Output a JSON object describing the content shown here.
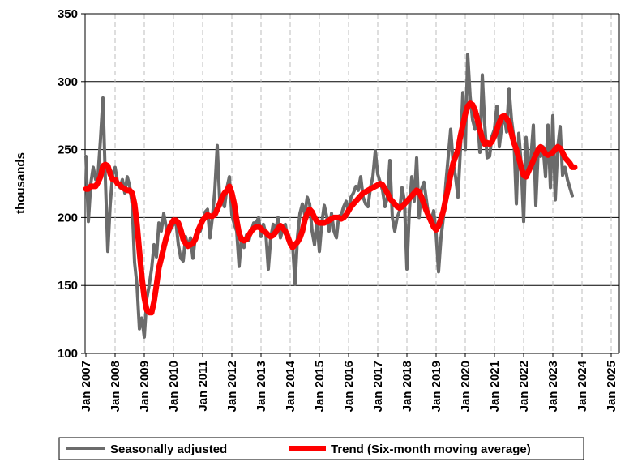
{
  "chart_data": {
    "type": "line",
    "ylabel": "thousands",
    "xlabel": "",
    "ylim": [
      100,
      350
    ],
    "yticks": [
      "100",
      "150",
      "200",
      "250",
      "300",
      "350"
    ],
    "x_start": "Jan 2007",
    "x_end": "Apr 2025",
    "x_tick_labels": [
      "Jan 2007",
      "Jan 2008",
      "Jan 2009",
      "Jan 2010",
      "Jan 2011",
      "Jan 2012",
      "Jan 2013",
      "Jan 2014",
      "Jan 2015",
      "Jan 2016",
      "Jan 2017",
      "Jan 2018",
      "Jan 2019",
      "Jan 2020",
      "Jan 2021",
      "Jan 2022",
      "Jan 2023",
      "Jan 2024",
      "Jan 2025"
    ],
    "horizontal_grid": true,
    "vertical_grid": "dashed",
    "legend_position": "bottom",
    "series": [
      {
        "name": "Seasonally adjusted",
        "color": "#6b6b6b",
        "values": [
          245,
          197,
          225,
          237,
          228,
          232,
          258,
          288,
          228,
          175,
          210,
          232,
          237,
          226,
          222,
          228,
          218,
          230,
          223,
          210,
          167,
          150,
          118,
          126,
          112,
          140,
          150,
          162,
          180,
          171,
          196,
          190,
          203,
          193,
          188,
          192,
          195,
          197,
          180,
          170,
          168,
          186,
          178,
          185,
          170,
          186,
          190,
          190,
          196,
          204,
          206,
          185,
          200,
          220,
          253,
          213,
          212,
          208,
          222,
          230,
          202,
          195,
          190,
          164,
          186,
          178,
          187,
          183,
          190,
          196,
          196,
          200,
          186,
          195,
          188,
          162,
          185,
          195,
          190,
          200,
          185,
          192,
          195,
          184,
          180,
          180,
          151,
          186,
          203,
          210,
          202,
          215,
          210,
          190,
          180,
          198,
          175,
          196,
          209,
          201,
          190,
          203,
          190,
          185,
          201,
          202,
          208,
          212,
          203,
          215,
          218,
          223,
          220,
          230,
          215,
          210,
          208,
          222,
          230,
          249,
          232,
          226,
          220,
          208,
          215,
          242,
          200,
          190,
          200,
          205,
          222,
          212,
          162,
          205,
          230,
          212,
          244,
          200,
          221,
          226,
          213,
          200,
          197,
          205,
          188,
          160,
          185,
          200,
          225,
          245,
          265,
          240,
          230,
          215,
          250,
          292,
          250,
          320,
          289,
          272,
          265,
          276,
          248,
          305,
          268,
          244,
          245,
          260,
          265,
          282,
          252,
          268,
          275,
          263,
          295,
          272,
          258,
          210,
          262,
          239,
          197,
          259,
          235,
          244,
          268,
          209,
          250,
          245,
          252,
          230,
          268,
          222,
          275,
          213,
          251,
          267,
          231,
          237,
          228,
          222,
          216
        ]
      },
      {
        "name": "Trend (Six-month moving average)",
        "color": "#ff0000",
        "values": [
          221,
          221,
          223,
          223,
          223,
          226,
          230,
          238,
          239,
          238,
          232,
          228,
          228,
          225,
          224,
          222,
          221,
          220,
          220,
          218,
          210,
          195,
          175,
          156,
          141,
          132,
          130,
          130,
          138,
          150,
          163,
          170,
          178,
          185,
          191,
          195,
          198,
          198,
          196,
          191,
          184,
          181,
          179,
          180,
          181,
          184,
          190,
          194,
          198,
          200,
          202,
          201,
          201,
          202,
          206,
          210,
          215,
          218,
          220,
          223,
          218,
          210,
          198,
          188,
          184,
          183,
          184,
          187,
          190,
          192,
          193,
          193,
          192,
          190,
          189,
          187,
          186,
          187,
          189,
          192,
          194,
          192,
          190,
          186,
          181,
          178,
          180,
          182,
          185,
          190,
          198,
          203,
          206,
          204,
          200,
          197,
          196,
          196,
          196,
          197,
          198,
          199,
          200,
          200,
          200,
          199,
          200,
          202,
          205,
          208,
          210,
          212,
          214,
          216,
          218,
          219,
          220,
          221,
          222,
          223,
          224,
          225,
          224,
          221,
          218,
          214,
          212,
          210,
          208,
          207,
          208,
          210,
          212,
          214,
          216,
          218,
          220,
          219,
          215,
          210,
          205,
          201,
          197,
          193,
          191,
          194,
          199,
          205,
          214,
          222,
          232,
          240,
          245,
          250,
          260,
          268,
          276,
          282,
          284,
          283,
          279,
          272,
          265,
          258,
          254,
          255,
          254,
          256,
          260,
          265,
          270,
          274,
          275,
          273,
          270,
          262,
          255,
          250,
          244,
          237,
          231,
          230,
          234,
          238,
          242,
          246,
          250,
          252,
          250,
          247,
          246,
          247,
          248,
          250,
          252,
          251,
          248,
          244,
          242,
          240,
          237,
          237
        ]
      }
    ]
  }
}
